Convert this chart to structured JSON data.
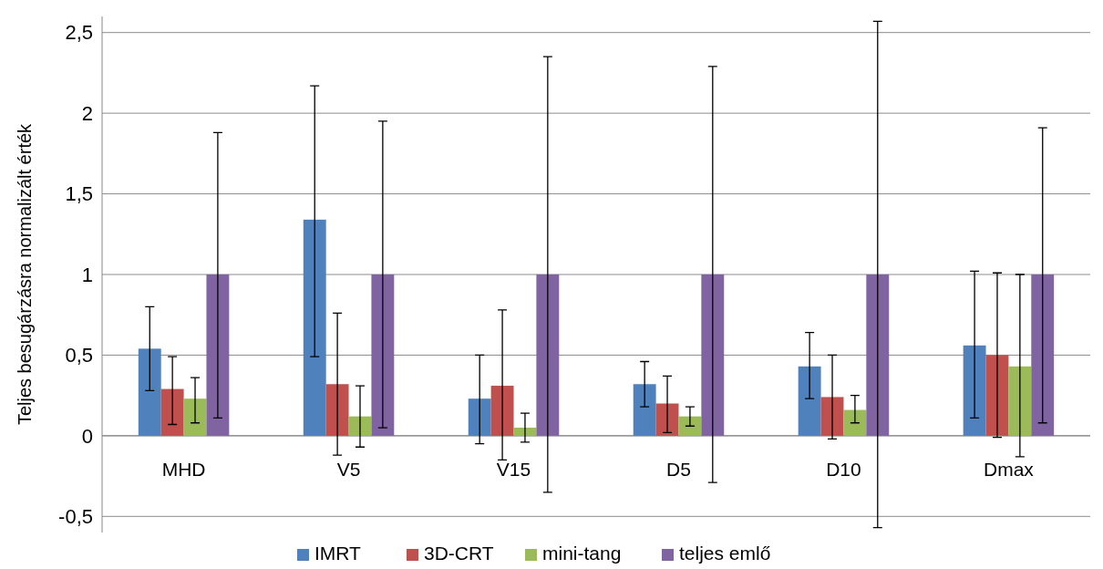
{
  "chart_data": {
    "type": "bar",
    "ylabel": "Teljes besugárzásra normalizált érték",
    "categories": [
      "MHD",
      "V5",
      "V15",
      "D5",
      "D10",
      "Dmax"
    ],
    "series": [
      {
        "name": "IMRT",
        "color": "#4f81bd",
        "values": [
          0.54,
          1.34,
          0.23,
          0.32,
          0.43,
          0.56
        ],
        "errors": [
          [
            0.28,
            0.8
          ],
          [
            0.49,
            2.17
          ],
          [
            -0.05,
            0.5
          ],
          [
            0.18,
            0.46
          ],
          [
            0.23,
            0.64
          ],
          [
            0.11,
            1.02
          ]
        ]
      },
      {
        "name": "3D-CRT",
        "color": "#c0504d",
        "values": [
          0.29,
          0.32,
          0.31,
          0.2,
          0.24,
          0.5
        ],
        "errors": [
          [
            0.07,
            0.49
          ],
          [
            -0.12,
            0.76
          ],
          [
            -0.15,
            0.78
          ],
          [
            0.02,
            0.37
          ],
          [
            -0.02,
            0.5
          ],
          [
            -0.01,
            1.01
          ]
        ]
      },
      {
        "name": "mini-tang",
        "color": "#9bbb59",
        "values": [
          0.23,
          0.12,
          0.05,
          0.12,
          0.16,
          0.43
        ],
        "errors": [
          [
            0.08,
            0.36
          ],
          [
            -0.07,
            0.31
          ],
          [
            -0.04,
            0.14
          ],
          [
            0.06,
            0.18
          ],
          [
            0.08,
            0.25
          ],
          [
            -0.13,
            1.0
          ]
        ]
      },
      {
        "name": "teljes emlő",
        "color": "#8064a2",
        "values": [
          1,
          1,
          1,
          1,
          1,
          1
        ],
        "errors": [
          [
            0.11,
            1.88
          ],
          [
            0.05,
            1.95
          ],
          [
            -0.35,
            2.35
          ],
          [
            -0.29,
            2.29
          ],
          [
            -0.57,
            2.57
          ],
          [
            0.08,
            1.91
          ]
        ]
      }
    ],
    "ylim": [
      -0.6,
      2.6
    ],
    "yticks": [
      {
        "value": -0.5,
        "label": "-0,5"
      },
      0,
      {
        "value": 0.5,
        "label": "0,5"
      },
      1,
      {
        "value": 1.5,
        "label": "1,5"
      },
      2,
      {
        "value": 2.5,
        "label": "2,5"
      }
    ],
    "grid": "y",
    "legend": "bottom"
  }
}
